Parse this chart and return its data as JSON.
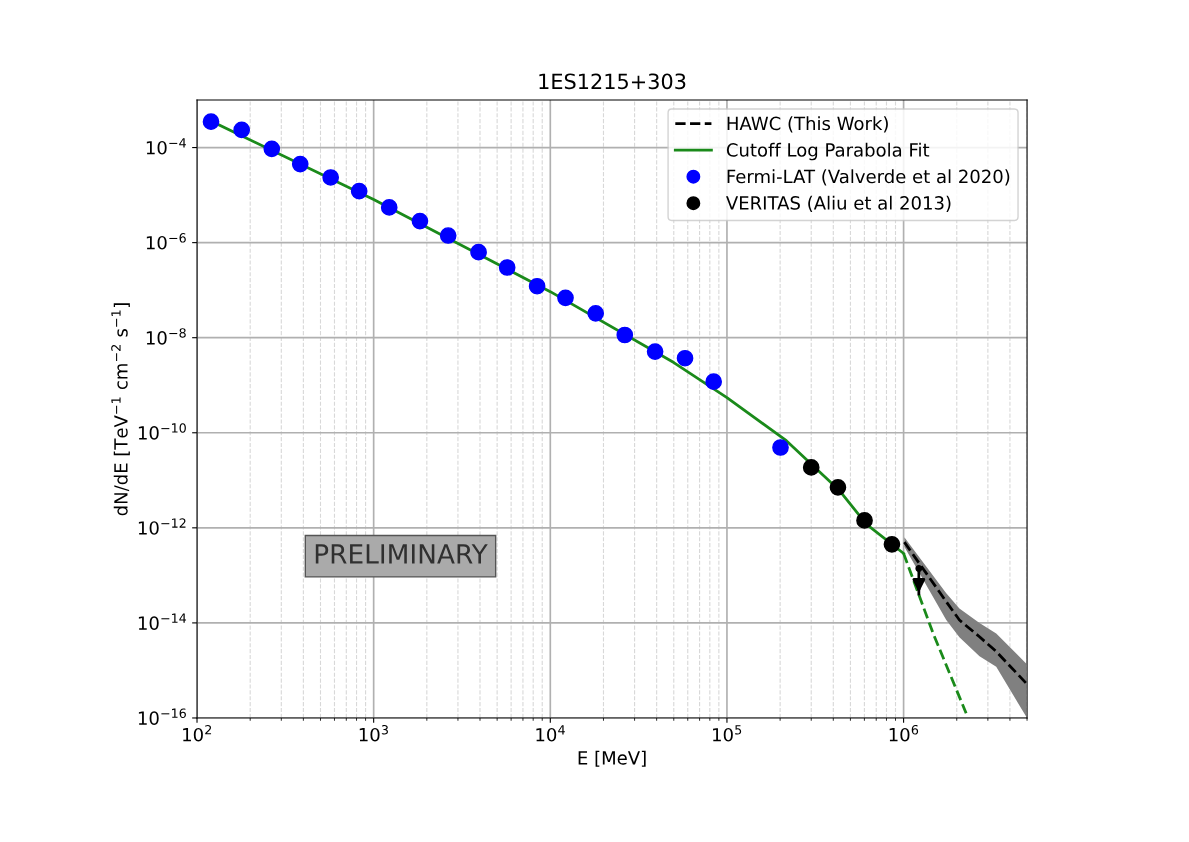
{
  "chart_data": {
    "type": "scatter",
    "title": "1ES1215+303",
    "xlabel": "E [MeV]",
    "ylabel": "dN/dE [TeV$^{−1}$ cm$^{−2}$ s$^{−1}$]",
    "log": "xy",
    "grid": true,
    "legend": "top right",
    "xlim": [
      100,
      5000000
    ],
    "ylim": [
      1e-16,
      0.001
    ],
    "xticks": [
      {
        "value": 100,
        "label": "10$^{2}$"
      },
      {
        "value": 1000,
        "label": "10$^{3}$"
      },
      {
        "value": 10000,
        "label": "10$^{4}$"
      },
      {
        "value": 100000,
        "label": "10$^{5}$"
      },
      {
        "value": 1000000,
        "label": "10$^{6}$"
      }
    ],
    "yticks": [
      {
        "value": 1e-16,
        "label": "10$^{−16}$"
      },
      {
        "value": 1e-14,
        "label": "10$^{−14}$"
      },
      {
        "value": 1e-12,
        "label": "10$^{−12}$"
      },
      {
        "value": 1e-10,
        "label": "10$^{−10}$"
      },
      {
        "value": 1e-08,
        "label": "10$^{−8}$"
      },
      {
        "value": 1e-06,
        "label": "10$^{−6}$"
      },
      {
        "value": 0.0001,
        "label": "10$^{−4}$"
      }
    ],
    "annotations": [
      "PRELIMINARY"
    ],
    "series": [
      {
        "name": "HAWC (This Work)",
        "type": "line",
        "line_style": "dashed",
        "color": "#000000",
        "x": [
          1010000,
          1744000,
          2070000,
          2690000,
          3346000,
          4940000
        ],
        "values": [
          5e-13,
          2.8e-14,
          1.15e-14,
          5.1e-15,
          2.5e-15,
          5.4e-16
        ],
        "lower": [
          4e-13,
          1.15e-14,
          5e-15,
          2e-15,
          1.2e-15,
          1.07e-16
        ],
        "upper": [
          6.3e-13,
          4.2e-14,
          2e-14,
          1e-14,
          6e-15,
          1.4e-15
        ]
      },
      {
        "name": "Cutoff Log Parabola Fit",
        "type": "line",
        "line_style": "solid",
        "color": "#1a8a1a",
        "x": [
          120,
          1000,
          10000,
          50000,
          100000,
          217000,
          435000,
          615000,
          1000000
        ],
        "values": [
          0.00036,
          8.1e-06,
          9.3e-08,
          3e-09,
          5.5e-10,
          6.8e-11,
          6e-12,
          1.2e-12,
          2.9e-13
        ]
      },
      {
        "type": "line",
        "line_style": "dashed",
        "color": "#1a8a1a",
        "x": [
          1000000,
          1470000,
          2260000
        ],
        "values": [
          2.9e-13,
          6e-15,
          1.26e-16
        ]
      },
      {
        "name": "Fermi-LAT (Valverde et al 2020)",
        "marker": "circle",
        "color": "#0000ff",
        "x": [
          120,
          179,
          265,
          384,
          571,
          828,
          1225,
          1828,
          2642,
          3926,
          5700,
          8420,
          12190,
          18070,
          26400,
          39200,
          57900,
          84100,
          201000
        ],
        "values": [
          0.000351,
          0.000235,
          9.4e-05,
          4.5e-05,
          2.35e-05,
          1.21e-05,
          5.5e-06,
          2.84e-06,
          1.41e-06,
          6.3e-07,
          3e-07,
          1.21e-07,
          6.9e-08,
          3.26e-08,
          1.14e-08,
          5.1e-09,
          3.7e-09,
          1.19e-09,
          4.9e-11
        ]
      },
      {
        "name": "VERITAS (Aliu et al 2013)",
        "marker": "circle",
        "color": "#000000",
        "x": [
          300000,
          425000,
          601000,
          859000
        ],
        "values": [
          1.87e-11,
          7.1e-12,
          1.43e-12,
          4.5e-13
        ]
      },
      {
        "marker": "triangle",
        "color": "#000000",
        "x": [
          1220000
        ],
        "values": [
          1.4e-13
        ],
        "errors": [
          [
            3.8e-14,
            1.4e-13
          ]
        ]
      }
    ]
  }
}
